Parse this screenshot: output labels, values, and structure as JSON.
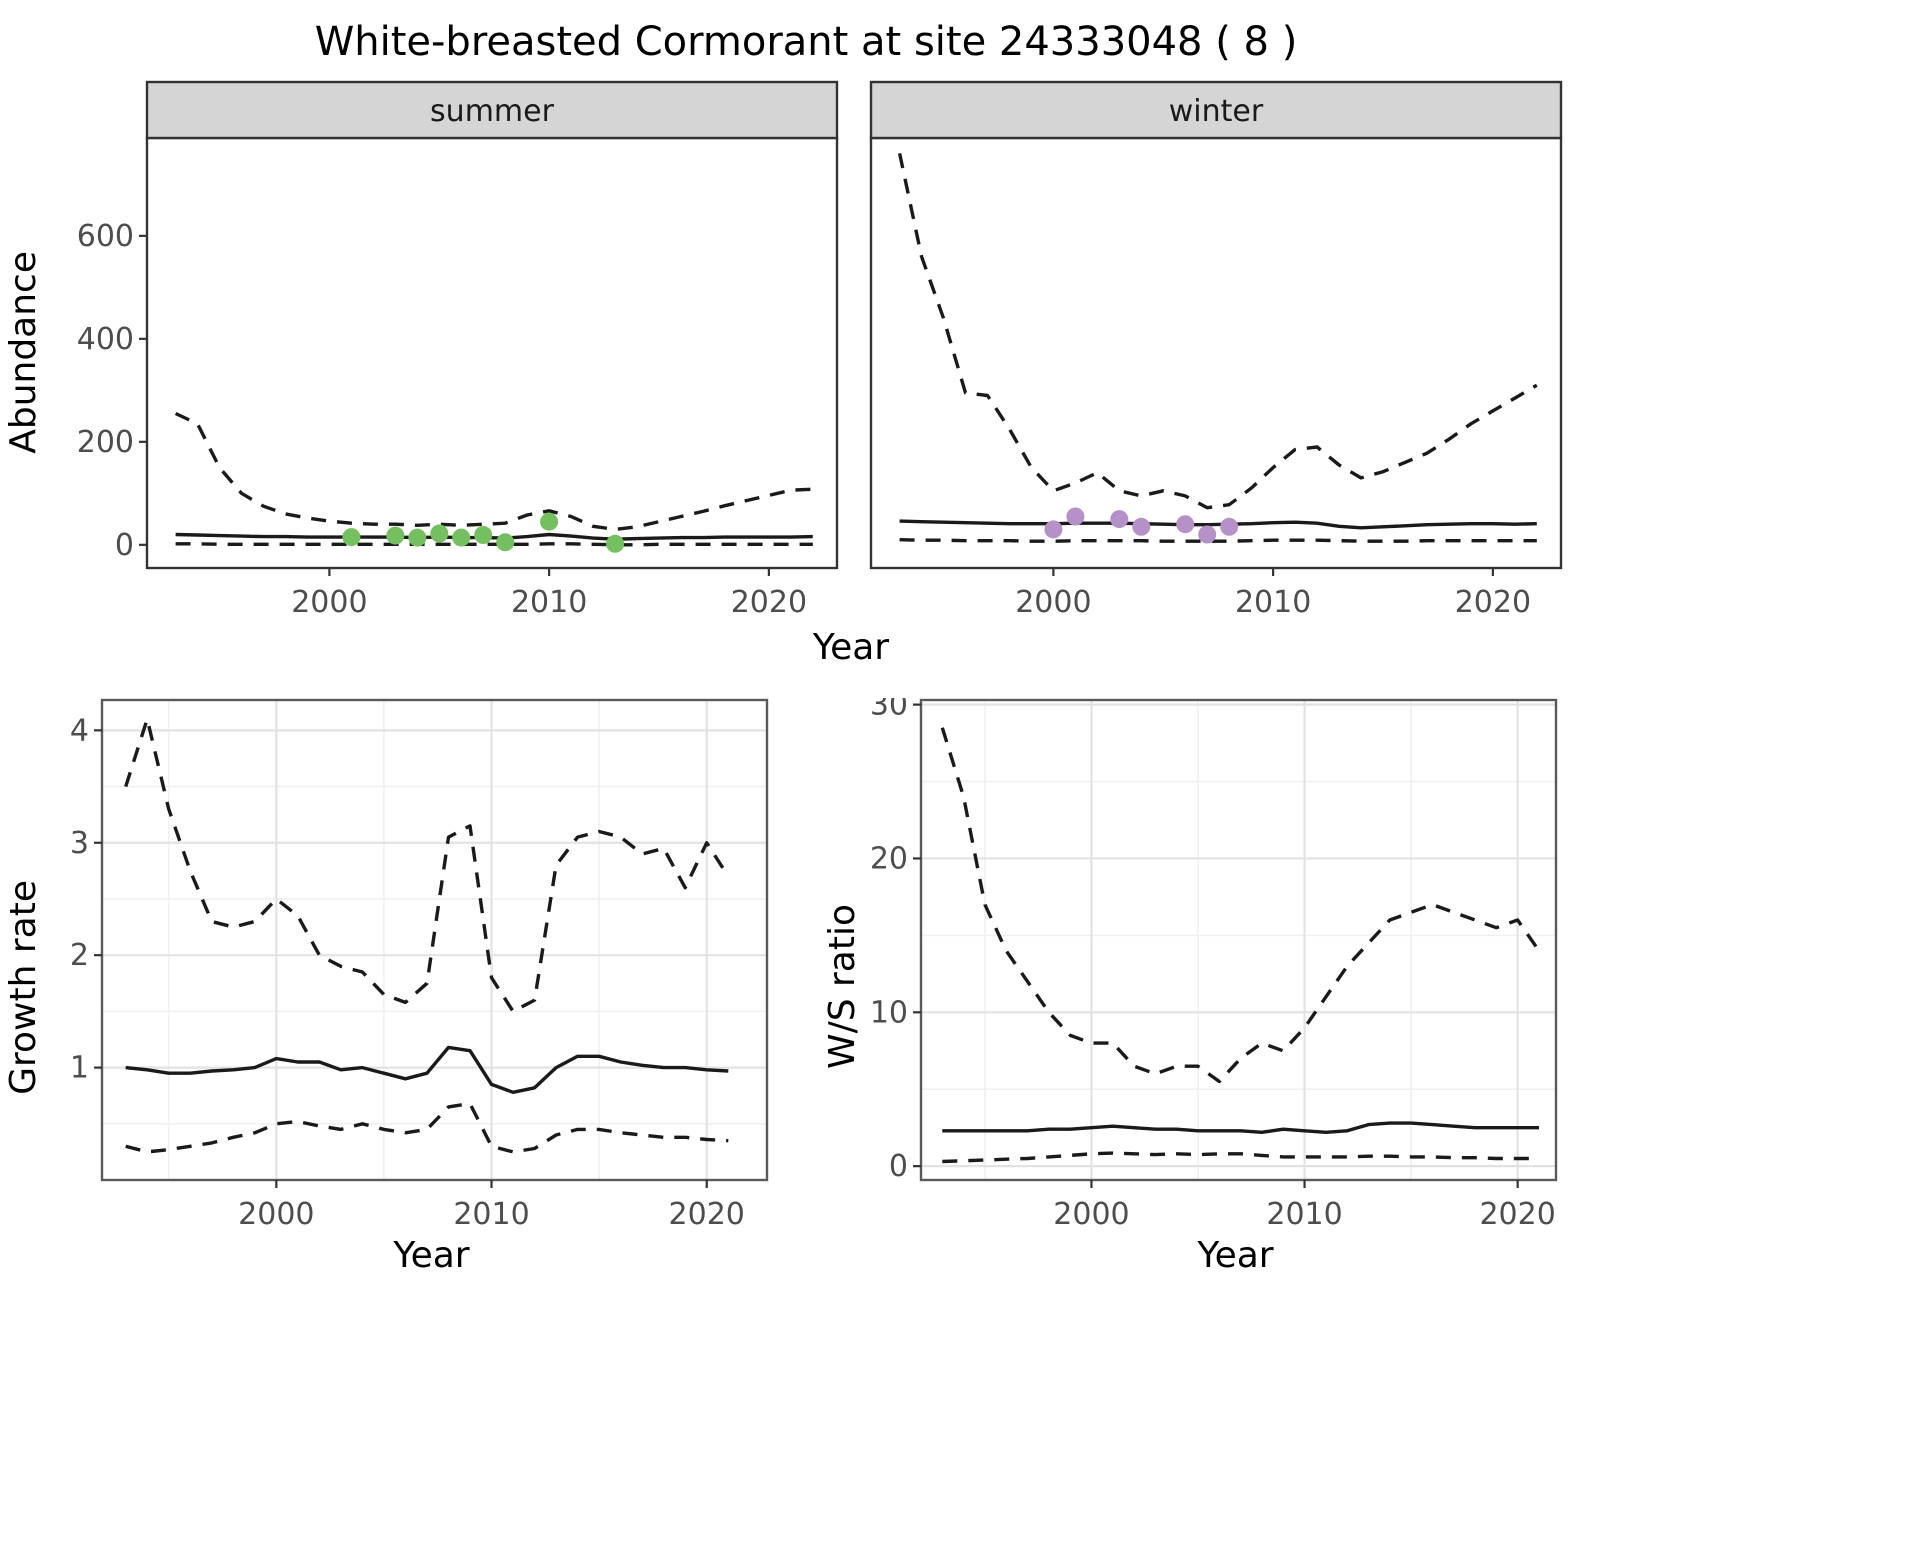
{
  "title": "White-breasted Cormorant at site 24333048 ( 8 )",
  "labels": {
    "x_axis": "Year",
    "abundance": "Abundance",
    "growth": "Growth rate",
    "ws": "W/S ratio"
  },
  "facets": {
    "summer": "summer",
    "winter": "winter"
  },
  "colors": {
    "line": "#1a1a1a",
    "summer_points": "#74c05f",
    "winter_points": "#b591c8",
    "strip_bg": "#d5d5d5",
    "grid_major": "#e2e2e2",
    "grid_minor": "#f0f0f0",
    "panel_border_top": "#333333",
    "panel_border_bottom": "#595959",
    "tick_label": "#4d4d4d",
    "tick_mark": "#333333"
  },
  "chart_data": [
    {
      "key": "summer_abundance",
      "type": "line",
      "facet_label": "summer",
      "xlabel": "Year",
      "ylabel": "Abundance",
      "xlim": [
        1991.7,
        2023.1
      ],
      "ylim": [
        -45,
        790
      ],
      "xticks": [
        2000,
        2010,
        2020
      ],
      "yticks": [
        0,
        200,
        400,
        600
      ],
      "grid": false,
      "x": [
        1993,
        1994,
        1995,
        1996,
        1997,
        1998,
        1999,
        2000,
        2001,
        2002,
        2003,
        2004,
        2005,
        2006,
        2007,
        2008,
        2009,
        2010,
        2011,
        2012,
        2013,
        2014,
        2015,
        2016,
        2017,
        2018,
        2019,
        2020,
        2021,
        2022
      ],
      "series": [
        {
          "name": "upper_ci",
          "style": "dashed",
          "values": [
            255,
            235,
            150,
            100,
            75,
            60,
            52,
            46,
            42,
            40,
            40,
            38,
            40,
            38,
            40,
            42,
            58,
            66,
            55,
            36,
            30,
            35,
            45,
            55,
            65,
            76,
            86,
            96,
            106,
            108
          ]
        },
        {
          "name": "median",
          "style": "solid",
          "values": [
            20,
            19,
            18,
            17,
            16,
            16,
            15,
            15,
            15,
            15,
            15,
            14,
            15,
            14,
            14,
            13,
            16,
            20,
            17,
            13,
            11,
            12,
            13,
            14,
            14,
            15,
            15,
            15,
            15,
            16
          ]
        },
        {
          "name": "lower_ci",
          "style": "dashed",
          "values": [
            2,
            2,
            1,
            1,
            1,
            1,
            1,
            1,
            1,
            1,
            1,
            1,
            1,
            1,
            1,
            1,
            1,
            2,
            2,
            1,
            0,
            0,
            1,
            1,
            1,
            1,
            1,
            1,
            1,
            1
          ]
        }
      ],
      "points": {
        "name": "observed-counts-summer",
        "color_key": "summer_points",
        "x": [
          2001,
          2003,
          2004,
          2005,
          2006,
          2007,
          2008,
          2010,
          2013
        ],
        "y": [
          15,
          18,
          14,
          22,
          14,
          19,
          5,
          45,
          2
        ]
      }
    },
    {
      "key": "winter_abundance",
      "type": "line",
      "facet_label": "winter",
      "xlabel": "Year",
      "ylabel": "Abundance",
      "xlim": [
        1991.7,
        2023.1
      ],
      "ylim": [
        -45,
        790
      ],
      "xticks": [
        2000,
        2010,
        2020
      ],
      "yticks": [
        0,
        200,
        400,
        600
      ],
      "grid": false,
      "x": [
        1993,
        1994,
        1995,
        1996,
        1997,
        1998,
        1999,
        2000,
        2001,
        2002,
        2003,
        2004,
        2005,
        2006,
        2007,
        2008,
        2009,
        2010,
        2011,
        2012,
        2013,
        2014,
        2015,
        2016,
        2017,
        2018,
        2019,
        2020,
        2021,
        2022
      ],
      "series": [
        {
          "name": "upper_ci",
          "style": "dashed",
          "values": [
            760,
            560,
            440,
            295,
            290,
            225,
            150,
            105,
            120,
            140,
            105,
            95,
            105,
            95,
            72,
            78,
            110,
            150,
            185,
            190,
            155,
            130,
            142,
            160,
            178,
            205,
            235,
            260,
            285,
            310
          ]
        },
        {
          "name": "median",
          "style": "solid",
          "values": [
            46,
            45,
            44,
            43,
            42,
            41,
            41,
            41,
            42,
            42,
            42,
            41,
            40,
            39,
            39,
            40,
            41,
            43,
            44,
            42,
            36,
            33,
            35,
            37,
            39,
            40,
            41,
            41,
            40,
            41
          ]
        },
        {
          "name": "lower_ci",
          "style": "dashed",
          "values": [
            10,
            9,
            9,
            8,
            8,
            8,
            7,
            7,
            8,
            8,
            8,
            8,
            7,
            7,
            7,
            7,
            8,
            9,
            9,
            9,
            8,
            7,
            7,
            7,
            8,
            8,
            8,
            8,
            8,
            8
          ]
        }
      ],
      "points": {
        "name": "observed-counts-winter",
        "color_key": "winter_points",
        "x": [
          2000,
          2001,
          2003,
          2004,
          2006,
          2007,
          2008
        ],
        "y": [
          30,
          55,
          50,
          35,
          40,
          20,
          35
        ]
      }
    },
    {
      "key": "growth_rate",
      "type": "line",
      "xlabel": "Year",
      "ylabel": "Growth rate",
      "xlim": [
        1991.9,
        2022.8
      ],
      "ylim": [
        0,
        4.27
      ],
      "xticks": [
        2000,
        2010,
        2020
      ],
      "yticks": [
        1,
        2,
        3,
        4
      ],
      "x_minor": [
        1995,
        2005,
        2015
      ],
      "y_minor": [
        0.5,
        1.5,
        2.5,
        3.5
      ],
      "grid": true,
      "x": [
        1993,
        1994,
        1995,
        1996,
        1997,
        1998,
        1999,
        2000,
        2001,
        2002,
        2003,
        2004,
        2005,
        2006,
        2007,
        2008,
        2009,
        2010,
        2011,
        2012,
        2013,
        2014,
        2015,
        2016,
        2017,
        2018,
        2019,
        2020,
        2021
      ],
      "series": [
        {
          "name": "upper_ci",
          "style": "dashed",
          "values": [
            3.5,
            4.1,
            3.3,
            2.75,
            2.3,
            2.25,
            2.3,
            2.5,
            2.35,
            2.0,
            1.9,
            1.85,
            1.65,
            1.58,
            1.75,
            3.05,
            3.15,
            1.8,
            1.5,
            1.6,
            2.8,
            3.05,
            3.1,
            3.05,
            2.9,
            2.95,
            2.6,
            3.0,
            2.7
          ]
        },
        {
          "name": "median",
          "style": "solid",
          "values": [
            1.0,
            0.98,
            0.95,
            0.95,
            0.97,
            0.98,
            1.0,
            1.08,
            1.05,
            1.05,
            0.98,
            1.0,
            0.95,
            0.9,
            0.95,
            1.18,
            1.15,
            0.85,
            0.78,
            0.82,
            1.0,
            1.1,
            1.1,
            1.05,
            1.02,
            1.0,
            1.0,
            0.98,
            0.97
          ]
        },
        {
          "name": "lower_ci",
          "style": "dashed",
          "values": [
            0.3,
            0.25,
            0.27,
            0.3,
            0.33,
            0.38,
            0.42,
            0.5,
            0.52,
            0.48,
            0.45,
            0.5,
            0.45,
            0.42,
            0.45,
            0.65,
            0.68,
            0.3,
            0.25,
            0.28,
            0.4,
            0.45,
            0.45,
            0.42,
            0.4,
            0.38,
            0.38,
            0.36,
            0.35
          ]
        }
      ]
    },
    {
      "key": "ws_ratio",
      "type": "line",
      "xlabel": "Year",
      "ylabel": "W/S ratio",
      "xlim": [
        1992,
        2021.8
      ],
      "ylim": [
        -0.9,
        30.3
      ],
      "xticks": [
        2000,
        2010,
        2020
      ],
      "yticks": [
        0,
        10,
        20,
        30
      ],
      "x_minor": [
        1995,
        2005,
        2015
      ],
      "y_minor": [
        5,
        15,
        25
      ],
      "grid": true,
      "x": [
        1993,
        1994,
        1995,
        1996,
        1997,
        1998,
        1999,
        2000,
        2001,
        2002,
        2003,
        2004,
        2005,
        2006,
        2007,
        2008,
        2009,
        2010,
        2011,
        2012,
        2013,
        2014,
        2015,
        2016,
        2017,
        2018,
        2019,
        2020,
        2021
      ],
      "series": [
        {
          "name": "upper_ci",
          "style": "dashed",
          "values": [
            28.5,
            24,
            17,
            14,
            12,
            10,
            8.5,
            8,
            8,
            6.5,
            6,
            6.5,
            6.5,
            5.5,
            7,
            8,
            7.5,
            9,
            11,
            13,
            14.5,
            16,
            16.5,
            17,
            16.5,
            16,
            15.5,
            16,
            14
          ]
        },
        {
          "name": "median",
          "style": "solid",
          "values": [
            2.3,
            2.3,
            2.3,
            2.3,
            2.3,
            2.4,
            2.4,
            2.5,
            2.6,
            2.5,
            2.4,
            2.4,
            2.3,
            2.3,
            2.3,
            2.2,
            2.4,
            2.3,
            2.2,
            2.3,
            2.7,
            2.8,
            2.8,
            2.7,
            2.6,
            2.5,
            2.5,
            2.5,
            2.5
          ]
        },
        {
          "name": "lower_ci",
          "style": "dashed",
          "values": [
            0.3,
            0.35,
            0.4,
            0.45,
            0.5,
            0.6,
            0.7,
            0.8,
            0.85,
            0.8,
            0.75,
            0.8,
            0.75,
            0.8,
            0.8,
            0.7,
            0.6,
            0.6,
            0.6,
            0.6,
            0.65,
            0.65,
            0.6,
            0.6,
            0.55,
            0.55,
            0.5,
            0.5,
            0.5
          ]
        }
      ]
    }
  ]
}
